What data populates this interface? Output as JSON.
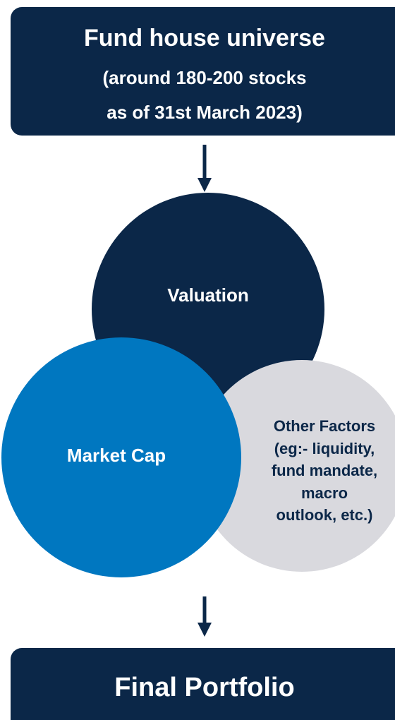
{
  "top_box": {
    "title": "Fund house universe",
    "lines": [
      "(around 180-200 stocks",
      "as of 31st March 2023)"
    ]
  },
  "circles": {
    "valuation": "Valuation",
    "market_cap": "Market Cap",
    "other_factors": [
      "Other Factors",
      "(eg:- liquidity,",
      "fund mandate,",
      "macro",
      "outlook, etc.)"
    ]
  },
  "bottom_box": {
    "title": "Final Portfolio"
  }
}
